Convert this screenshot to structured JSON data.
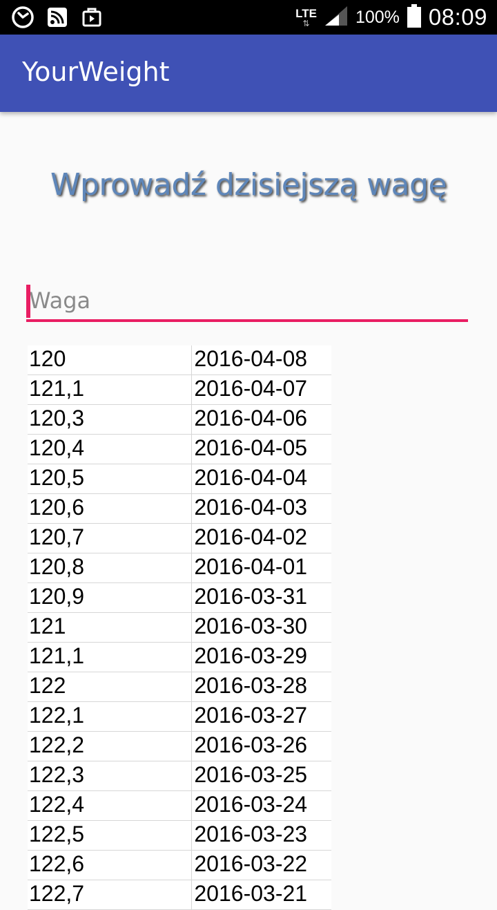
{
  "status_bar": {
    "network": "LTE",
    "battery": "100%",
    "time": "08:09",
    "icons": [
      "clock-icon",
      "rss-icon",
      "bag-icon",
      "signal-icon",
      "battery-icon"
    ]
  },
  "app_bar": {
    "title": "YourWeight"
  },
  "heading": "Wprowadź dzisiejszą wagę",
  "weight_input": {
    "value": "",
    "placeholder": "Waga"
  },
  "colors": {
    "app_bar": "#3f51b5",
    "accent": "#e91e63",
    "heading": "#5e86b9"
  },
  "rows": [
    {
      "weight": "120",
      "date": "2016-04-08"
    },
    {
      "weight": "121,1",
      "date": "2016-04-07"
    },
    {
      "weight": "120,3",
      "date": "2016-04-06"
    },
    {
      "weight": "120,4",
      "date": "2016-04-05"
    },
    {
      "weight": "120,5",
      "date": "2016-04-04"
    },
    {
      "weight": "120,6",
      "date": "2016-04-03"
    },
    {
      "weight": "120,7",
      "date": "2016-04-02"
    },
    {
      "weight": "120,8",
      "date": "2016-04-01"
    },
    {
      "weight": "120,9",
      "date": "2016-03-31"
    },
    {
      "weight": "121",
      "date": "2016-03-30"
    },
    {
      "weight": "121,1",
      "date": "2016-03-29"
    },
    {
      "weight": "122",
      "date": "2016-03-28"
    },
    {
      "weight": "122,1",
      "date": "2016-03-27"
    },
    {
      "weight": "122,2",
      "date": "2016-03-26"
    },
    {
      "weight": "122,3",
      "date": "2016-03-25"
    },
    {
      "weight": "122,4",
      "date": "2016-03-24"
    },
    {
      "weight": "122,5",
      "date": "2016-03-23"
    },
    {
      "weight": "122,6",
      "date": "2016-03-22"
    },
    {
      "weight": "122,7",
      "date": "2016-03-21"
    }
  ]
}
